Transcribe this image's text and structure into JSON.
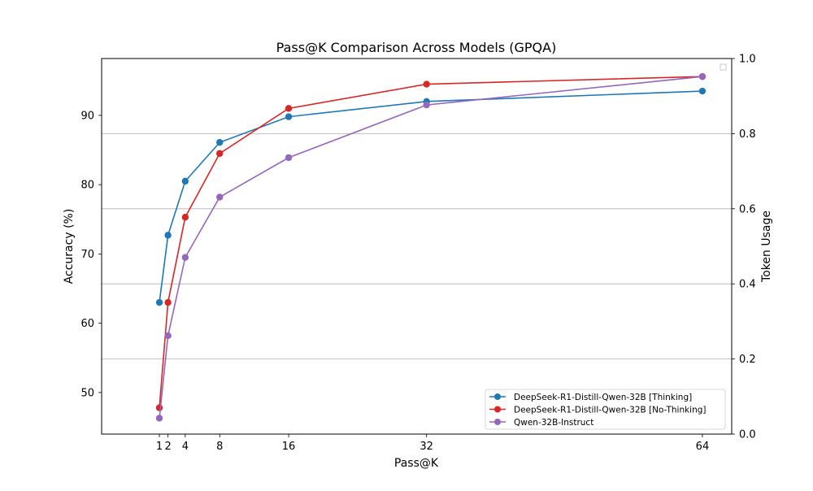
{
  "chart_data": {
    "type": "line",
    "title": "Pass@K Comparison Across Models (GPQA)",
    "xlabel": "Pass@K",
    "ylabel": "Accuracy (%)",
    "y2label": "Token Usage",
    "x": [
      1,
      2,
      4,
      8,
      16,
      32,
      64
    ],
    "xticks": [
      "1",
      "2",
      "4",
      "8",
      "16",
      "32",
      "64"
    ],
    "xlim": [
      -5.7,
      67.4
    ],
    "ylim": [
      44,
      98.2
    ],
    "yticks": [
      "50",
      "60",
      "70",
      "80",
      "90"
    ],
    "y2lim": [
      0,
      1
    ],
    "y2ticks": [
      "0.0",
      "0.2",
      "0.4",
      "0.6",
      "0.8",
      "1.0"
    ],
    "grid": "horizontal (right axis)",
    "legend_position": "lower-right",
    "series": [
      {
        "name": "DeepSeek-R1-Distill-Qwen-32B [Thinking]",
        "color": "#1f77b4",
        "values": [
          63.0,
          72.7,
          80.5,
          86.1,
          89.8,
          92.0,
          93.5
        ]
      },
      {
        "name": "DeepSeek-R1-Distill-Qwen-32B [No-Thinking]",
        "color": "#d62728",
        "values": [
          47.8,
          63.0,
          75.3,
          84.5,
          91.0,
          94.5,
          95.6
        ]
      },
      {
        "name": "Qwen-32B-Instruct",
        "color": "#9467bd",
        "values": [
          46.3,
          58.2,
          69.5,
          78.2,
          83.9,
          91.5,
          95.6
        ]
      }
    ]
  }
}
